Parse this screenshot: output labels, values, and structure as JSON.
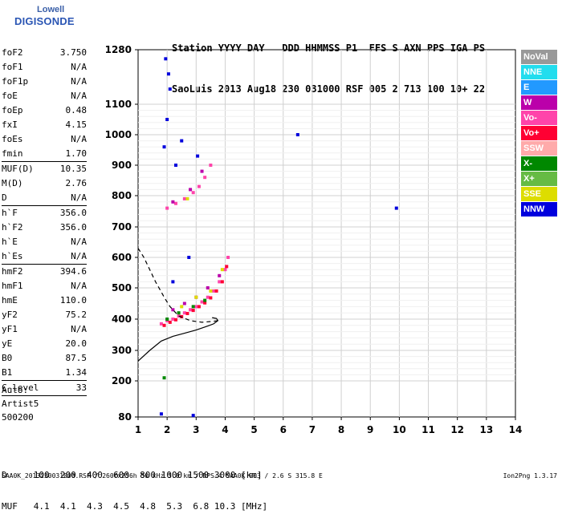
{
  "logo": {
    "line1": "Lowell",
    "line2": "DIGISONDE"
  },
  "header": {
    "line1": "Station YYYY DAY   DDD HHMMSS P1  FFS S AXN PPS IGA PS",
    "line2": "SaoLuis 2013 Aug18 230 031000 RSF 005 2 713 100 10+ 22"
  },
  "params": [
    {
      "label": "foF2",
      "value": "3.750"
    },
    {
      "label": "foF1",
      "value": "N/A"
    },
    {
      "label": "foF1p",
      "value": "N/A"
    },
    {
      "label": "foE",
      "value": "N/A"
    },
    {
      "label": "foEp",
      "value": "0.48"
    },
    {
      "label": "fxI",
      "value": "4.15"
    },
    {
      "label": "foEs",
      "value": "N/A"
    },
    {
      "label": "fmin",
      "value": "1.70"
    },
    {
      "sep": true
    },
    {
      "label": "MUF(D)",
      "value": "10.35"
    },
    {
      "label": "M(D)",
      "value": "2.76"
    },
    {
      "label": "D",
      "value": "N/A"
    },
    {
      "sep": true
    },
    {
      "label": "h`F",
      "value": "356.0"
    },
    {
      "label": "h`F2",
      "value": "356.0"
    },
    {
      "label": "h`E",
      "value": "N/A"
    },
    {
      "label": "h`Es",
      "value": "N/A"
    },
    {
      "sep": true
    },
    {
      "label": "hmF2",
      "value": "394.6"
    },
    {
      "label": "hmF1",
      "value": "N/A"
    },
    {
      "label": "hmE",
      "value": "110.0"
    },
    {
      "label": "yF2",
      "value": "75.2"
    },
    {
      "label": "yF1",
      "value": "N/A"
    },
    {
      "label": "yE",
      "value": "20.0"
    },
    {
      "label": "B0",
      "value": "87.5"
    },
    {
      "label": "B1",
      "value": "1.34"
    },
    {
      "sep": true
    },
    {
      "label": "C-level",
      "value": "33"
    },
    {
      "sep": true
    }
  ],
  "auto": {
    "line1": "Auto:",
    "line2": "Artist5",
    "line3": "500200"
  },
  "legend": [
    {
      "label": "NoVal",
      "color": "#999999"
    },
    {
      "label": "NNE",
      "color": "#22ddee"
    },
    {
      "label": "E",
      "color": "#2299ff"
    },
    {
      "label": "W",
      "color": "#bb00aa"
    },
    {
      "label": "Vo-",
      "color": "#ff44aa"
    },
    {
      "label": "Vo+",
      "color": "#ff0033"
    },
    {
      "label": "SSW",
      "color": "#ffaaaa"
    },
    {
      "label": "X-",
      "color": "#008800"
    },
    {
      "label": "X+",
      "color": "#66bb44"
    },
    {
      "label": "SSE",
      "color": "#dddd00"
    },
    {
      "label": "NNW",
      "color": "#0000dd"
    }
  ],
  "chart_data": {
    "type": "scatter",
    "title": "",
    "xlabel": "",
    "ylabel": "",
    "xlim": [
      1,
      14
    ],
    "ylim": [
      80,
      1280
    ],
    "x_ticks": [
      1,
      2,
      3,
      4,
      5,
      6,
      7,
      8,
      9,
      10,
      11,
      12,
      13,
      14
    ],
    "y_ticks": [
      80,
      200,
      300,
      400,
      500,
      600,
      700,
      800,
      900,
      1000,
      1100,
      1280
    ],
    "y_tick_labels": [
      "80",
      "200",
      "300",
      "400",
      "500",
      "600",
      "700",
      "800",
      "900",
      "1000",
      "1100",
      "1280"
    ],
    "grid": true,
    "series": [
      {
        "name": "Vo-",
        "color": "#ff44aa",
        "points": [
          [
            1.8,
            385
          ],
          [
            2.0,
            395
          ],
          [
            2.2,
            400
          ],
          [
            2.4,
            410
          ],
          [
            2.6,
            420
          ],
          [
            2.8,
            430
          ],
          [
            3.0,
            440
          ],
          [
            3.2,
            455
          ],
          [
            3.4,
            470
          ],
          [
            3.6,
            490
          ],
          [
            3.8,
            520
          ],
          [
            4.0,
            560
          ],
          [
            4.1,
            600
          ],
          [
            2.0,
            760
          ],
          [
            2.3,
            775
          ],
          [
            2.6,
            790
          ],
          [
            2.9,
            810
          ],
          [
            3.1,
            830
          ],
          [
            3.3,
            860
          ],
          [
            3.5,
            900
          ]
        ]
      },
      {
        "name": "Vo+",
        "color": "#ff0033",
        "points": [
          [
            1.9,
            380
          ],
          [
            2.1,
            390
          ],
          [
            2.3,
            398
          ],
          [
            2.5,
            408
          ],
          [
            2.7,
            418
          ],
          [
            2.9,
            428
          ],
          [
            3.1,
            440
          ],
          [
            3.3,
            452
          ],
          [
            3.5,
            468
          ],
          [
            3.7,
            490
          ],
          [
            3.9,
            520
          ],
          [
            4.05,
            570
          ]
        ]
      },
      {
        "name": "W",
        "color": "#bb00aa",
        "points": [
          [
            2.2,
            430
          ],
          [
            2.6,
            450
          ],
          [
            3.0,
            470
          ],
          [
            3.4,
            500
          ],
          [
            3.8,
            540
          ],
          [
            2.2,
            780
          ],
          [
            2.8,
            820
          ],
          [
            3.2,
            880
          ]
        ]
      },
      {
        "name": "NNW",
        "color": "#0000dd",
        "points": [
          [
            1.95,
            1250
          ],
          [
            2.05,
            1200
          ],
          [
            2.1,
            1150
          ],
          [
            2.0,
            1050
          ],
          [
            1.9,
            960
          ],
          [
            2.3,
            900
          ],
          [
            2.5,
            980
          ],
          [
            3.05,
            930
          ],
          [
            2.75,
            600
          ],
          [
            2.2,
            520
          ],
          [
            6.5,
            1000
          ],
          [
            9.9,
            760
          ],
          [
            1.8,
            90
          ],
          [
            2.9,
            85
          ]
        ]
      },
      {
        "name": "X-",
        "color": "#008800",
        "points": [
          [
            2.0,
            400
          ],
          [
            2.4,
            420
          ],
          [
            2.9,
            440
          ],
          [
            3.3,
            460
          ],
          [
            1.9,
            210
          ]
        ]
      },
      {
        "name": "SSE",
        "color": "#dddd00",
        "points": [
          [
            2.5,
            440
          ],
          [
            3.0,
            470
          ],
          [
            3.5,
            490
          ],
          [
            3.9,
            560
          ],
          [
            2.7,
            790
          ]
        ]
      }
    ],
    "curves": [
      {
        "name": "profile",
        "style": "solid",
        "points": [
          [
            1.0,
            265
          ],
          [
            1.4,
            300
          ],
          [
            1.8,
            330
          ],
          [
            2.2,
            345
          ],
          [
            2.6,
            355
          ],
          [
            3.0,
            365
          ],
          [
            3.4,
            378
          ],
          [
            3.6,
            385
          ],
          [
            3.75,
            395
          ],
          [
            3.7,
            402
          ],
          [
            3.55,
            405
          ]
        ]
      },
      {
        "name": "trace",
        "style": "dashed",
        "points": [
          [
            1.0,
            630
          ],
          [
            1.2,
            600
          ],
          [
            1.4,
            560
          ],
          [
            1.6,
            520
          ],
          [
            1.75,
            495
          ],
          [
            1.9,
            470
          ],
          [
            2.1,
            440
          ],
          [
            2.4,
            410
          ],
          [
            2.8,
            395
          ],
          [
            3.2,
            390
          ],
          [
            3.6,
            393
          ],
          [
            3.75,
            395
          ]
        ]
      }
    ]
  },
  "footer": {
    "line1": "D     100  200  400  600  800 1000 1500 3000 [km]",
    "line2": "MUF   4.1  4.1  4.3  4.5  4.8  5.3  6.8 10.3 [MHz]"
  },
  "filename": "SAA0K_2013230031000.RSF / 260fx256h 50 kHz 5.0 km / DPS-4 SAA0K 903 / 2.6 S 315.8 E",
  "version": "Ion2Png 1.3.17"
}
